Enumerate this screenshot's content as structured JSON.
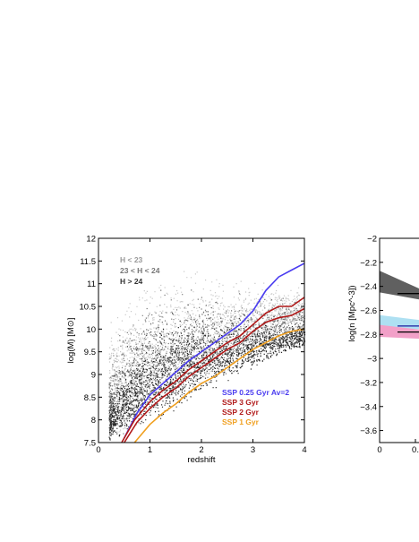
{
  "chart_data": [
    {
      "type": "scatter",
      "xlabel": "redshift",
      "ylabel": "log(M) [M⊙]",
      "xlim": [
        0,
        4
      ],
      "ylim": [
        7.5,
        12
      ],
      "xticks": [
        0,
        1,
        2,
        3,
        4
      ],
      "yticks": [
        7.5,
        8,
        8.5,
        9,
        9.5,
        10,
        10.5,
        11,
        11.5,
        12
      ],
      "grid": false,
      "legend_placement": "top-left",
      "scatter_series": [
        {
          "name": "H < 23",
          "color": "#c8c8c8",
          "envelope": {
            "x": [
              0.2,
              0.5,
              1.0,
              1.5,
              2.0,
              2.5,
              3.0,
              3.5,
              4.0
            ],
            "y_lower": [
              7.5,
              7.6,
              8.0,
              8.4,
              8.8,
              9.2,
              9.6,
              9.9,
              10.1
            ],
            "y_upper": [
              10.5,
              11.1,
              11.5,
              11.6,
              11.5,
              11.4,
              11.3,
              11.2,
              11.0
            ]
          }
        },
        {
          "name": "23 < H < 24",
          "color": "#777777",
          "envelope": {
            "x": [
              0.2,
              0.5,
              1.0,
              1.5,
              2.0,
              2.5,
              3.0,
              3.5,
              4.0
            ],
            "y_lower": [
              7.5,
              7.6,
              8.0,
              8.4,
              8.7,
              9.0,
              9.3,
              9.6,
              9.8
            ],
            "y_upper": [
              9.5,
              10.5,
              11.1,
              11.2,
              11.1,
              11.0,
              10.9,
              10.8,
              10.7
            ]
          }
        },
        {
          "name": "H > 24",
          "color": "#2a2a2a",
          "envelope": {
            "x": [
              0.2,
              0.5,
              1.0,
              1.5,
              2.0,
              2.5,
              3.0,
              3.5,
              4.0
            ],
            "y_lower": [
              7.5,
              7.6,
              7.9,
              8.2,
              8.5,
              8.8,
              9.1,
              9.4,
              9.6
            ],
            "y_upper": [
              8.8,
              9.6,
              10.3,
              10.6,
              10.6,
              10.5,
              10.4,
              10.3,
              10.2
            ]
          }
        }
      ],
      "legend_series": [
        "H < 23",
        "23 < H < 24",
        "H > 24"
      ],
      "line_series": [
        {
          "name": "SSP 0.25 Gyr Av=2",
          "color": "#4a3cf0",
          "x": [
            0.5,
            0.75,
            1.0,
            1.25,
            1.5,
            1.75,
            2.0,
            2.25,
            2.5,
            2.75,
            3.0,
            3.25,
            3.5,
            3.75,
            4.0
          ],
          "y": [
            7.6,
            8.15,
            8.55,
            8.8,
            9.05,
            9.3,
            9.5,
            9.7,
            9.9,
            10.1,
            10.4,
            10.85,
            11.15,
            11.3,
            11.45
          ]
        },
        {
          "name": "SSP 3 Gyr",
          "color": "#b01818",
          "x": [
            0.45,
            0.7,
            1.0,
            1.25,
            1.5,
            1.75,
            2.0,
            2.25,
            2.5,
            2.75,
            3.0,
            3.25,
            3.5,
            3.75,
            4.0
          ],
          "y": [
            7.5,
            8.0,
            8.4,
            8.65,
            8.85,
            9.1,
            9.3,
            9.5,
            9.7,
            9.85,
            10.1,
            10.35,
            10.5,
            10.5,
            10.7
          ]
        },
        {
          "name": "SSP 2 Gyr",
          "color": "#b01818",
          "x": [
            0.5,
            0.75,
            1.0,
            1.25,
            1.5,
            1.75,
            2.0,
            2.25,
            2.5,
            2.75,
            3.0,
            3.25,
            3.5,
            3.75,
            4.0
          ],
          "y": [
            7.5,
            7.95,
            8.25,
            8.5,
            8.7,
            8.95,
            9.15,
            9.35,
            9.55,
            9.7,
            9.95,
            10.15,
            10.25,
            10.3,
            10.45
          ]
        },
        {
          "name": "SSP 1 Gyr",
          "color": "#f0a020",
          "x": [
            0.7,
            1.0,
            1.25,
            1.5,
            1.75,
            2.0,
            2.25,
            2.5,
            2.75,
            3.0,
            3.25,
            3.5,
            3.75,
            4.0
          ],
          "y": [
            7.5,
            7.9,
            8.15,
            8.35,
            8.6,
            8.8,
            8.95,
            9.15,
            9.35,
            9.55,
            9.7,
            9.85,
            9.95,
            10.0
          ]
        }
      ],
      "legend_lines_placement": "bottom-right"
    },
    {
      "type": "area",
      "ylabel": "log(n [Mpc^-3])",
      "ylim": [
        -3.7,
        -2.0
      ],
      "yticks": [
        -2,
        -2.2,
        -2.4,
        -2.6,
        -2.8,
        -3,
        -3.2,
        -3.4,
        -3.6
      ],
      "xticks_visible": [
        "0",
        "0."
      ],
      "bands": [
        {
          "color": "#606060",
          "y_at_left": [
            -2.27,
            -2.45
          ]
        },
        {
          "color": "#aee0f2",
          "y_at_left": [
            -2.64,
            -2.74
          ]
        },
        {
          "color": "#f2a0c8",
          "y_at_left": [
            -2.72,
            -2.82
          ]
        }
      ],
      "lines": [
        {
          "color": "#000000",
          "y": -2.46
        },
        {
          "color": "#1d1da0",
          "y": -2.73
        },
        {
          "color": "#000000",
          "y": -2.78
        }
      ]
    }
  ]
}
